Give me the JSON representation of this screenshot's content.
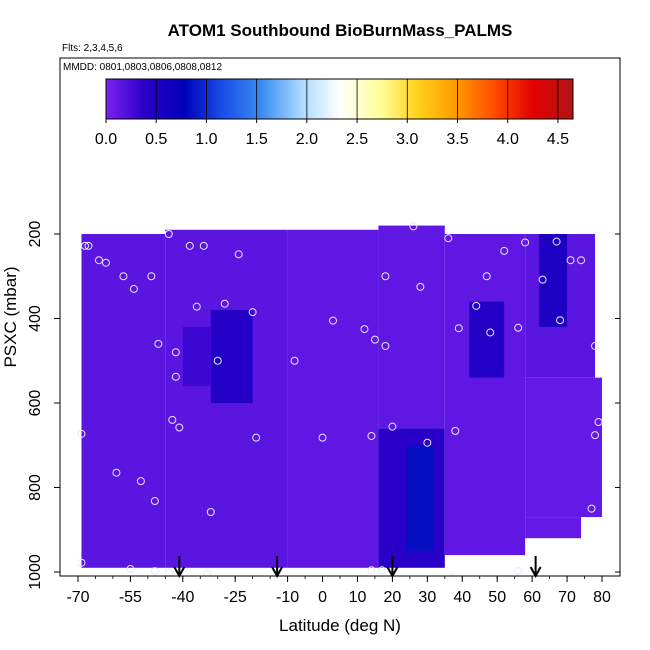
{
  "chart_data": {
    "type": "heatmap",
    "title": "ATOM1 Southbound BioBurnMass_PALMS",
    "flights_note": "Flts: 2,3,4,5,6",
    "dates_note": "MMDD: 0801,0803,0806,0808,0812",
    "xlabel": "Latitude (deg N)",
    "ylabel": "PSXC (mbar)",
    "xlim": [
      -70,
      80
    ],
    "ylim": [
      1000,
      100
    ],
    "x_ticks": [
      -70,
      -55,
      -40,
      -25,
      -10,
      0,
      10,
      20,
      30,
      40,
      50,
      60,
      70,
      80
    ],
    "x_tick_labels": [
      "-70",
      "-55",
      "-40",
      "-25",
      "-10",
      "0",
      "10",
      "20",
      "30",
      "40",
      "50",
      "60",
      "70",
      "80"
    ],
    "y_ticks": [
      200,
      400,
      600,
      800,
      1000
    ],
    "y_tick_labels": [
      "200",
      "400",
      "600",
      "800",
      "1000"
    ],
    "colorbar": {
      "range": [
        0,
        4.65
      ],
      "ticks": [
        0.0,
        0.5,
        1.0,
        1.5,
        2.0,
        2.5,
        3.0,
        3.5,
        4.0,
        4.5
      ],
      "tick_labels": [
        "0.0",
        "0.5",
        "1.0",
        "1.5",
        "2.0",
        "2.5",
        "3.0",
        "3.5",
        "4.0",
        "4.5"
      ],
      "colors": [
        "#7a22f0",
        "#2a00c8",
        "#0000b8",
        "#1a4ee8",
        "#3a8cf2",
        "#a8d8ff",
        "#ffffff",
        "#ffffa0",
        "#ffd21a",
        "#ff9a00",
        "#ff4a00",
        "#e00000",
        "#b01515"
      ]
    },
    "background_value": 0.1,
    "grid": false,
    "field_regions": [
      {
        "lat": [
          -69,
          -45
        ],
        "p": [
          200,
          990
        ],
        "value": 0.15
      },
      {
        "lat": [
          -45,
          -10
        ],
        "p": [
          190,
          990
        ],
        "value": 0.15
      },
      {
        "lat": [
          -32,
          -20
        ],
        "p": [
          380,
          600
        ],
        "value": 0.45
      },
      {
        "lat": [
          -40,
          -32
        ],
        "p": [
          420,
          560
        ],
        "value": 0.3
      },
      {
        "lat": [
          -10,
          16
        ],
        "p": [
          190,
          990
        ],
        "value": 0.12
      },
      {
        "lat": [
          16,
          35
        ],
        "p": [
          180,
          660
        ],
        "value": 0.12
      },
      {
        "lat": [
          16,
          35
        ],
        "p": [
          660,
          990
        ],
        "value": 0.4
      },
      {
        "lat": [
          24,
          32
        ],
        "p": [
          700,
          950
        ],
        "value": 0.85
      },
      {
        "lat": [
          35,
          58
        ],
        "p": [
          200,
          960
        ],
        "value": 0.12
      },
      {
        "lat": [
          42,
          52
        ],
        "p": [
          360,
          540
        ],
        "value": 0.45
      },
      {
        "lat": [
          58,
          78
        ],
        "p": [
          200,
          540
        ],
        "value": 0.15
      },
      {
        "lat": [
          62,
          70
        ],
        "p": [
          200,
          420
        ],
        "value": 0.5
      },
      {
        "lat": [
          58,
          80
        ],
        "p": [
          540,
          870
        ],
        "value": 0.1
      },
      {
        "lat": [
          58,
          74
        ],
        "p": [
          870,
          920
        ],
        "value": 0.1
      }
    ],
    "sample_points": [
      {
        "lat": -68,
        "p": 228
      },
      {
        "lat": -67,
        "p": 228
      },
      {
        "lat": -64,
        "p": 262
      },
      {
        "lat": -62,
        "p": 268
      },
      {
        "lat": -57,
        "p": 300
      },
      {
        "lat": -54,
        "p": 330
      },
      {
        "lat": -49,
        "p": 300
      },
      {
        "lat": -44,
        "p": 200
      },
      {
        "lat": -38,
        "p": 228
      },
      {
        "lat": -34,
        "p": 228
      },
      {
        "lat": -24,
        "p": 248
      },
      {
        "lat": -36,
        "p": 372
      },
      {
        "lat": -28,
        "p": 365
      },
      {
        "lat": -20,
        "p": 385
      },
      {
        "lat": -47,
        "p": 460
      },
      {
        "lat": -42,
        "p": 480
      },
      {
        "lat": -42,
        "p": 538
      },
      {
        "lat": -30,
        "p": 500
      },
      {
        "lat": -8,
        "p": 500
      },
      {
        "lat": 3,
        "p": 405
      },
      {
        "lat": 12,
        "p": 425
      },
      {
        "lat": 15,
        "p": 450
      },
      {
        "lat": 18,
        "p": 465
      },
      {
        "lat": 18,
        "p": 300
      },
      {
        "lat": 28,
        "p": 325
      },
      {
        "lat": 26,
        "p": 182
      },
      {
        "lat": 36,
        "p": 210
      },
      {
        "lat": 44,
        "p": 370
      },
      {
        "lat": 47,
        "p": 300
      },
      {
        "lat": 52,
        "p": 240
      },
      {
        "lat": 58,
        "p": 220
      },
      {
        "lat": 67,
        "p": 218
      },
      {
        "lat": 71,
        "p": 262
      },
      {
        "lat": 74,
        "p": 262
      },
      {
        "lat": 63,
        "p": 308
      },
      {
        "lat": 56,
        "p": 422
      },
      {
        "lat": 48,
        "p": 433
      },
      {
        "lat": 39,
        "p": 423
      },
      {
        "lat": 68,
        "p": 404
      },
      {
        "lat": 78,
        "p": 465
      },
      {
        "lat": 79,
        "p": 645
      },
      {
        "lat": 78,
        "p": 676
      },
      {
        "lat": 77,
        "p": 850
      },
      {
        "lat": -69,
        "p": 673
      },
      {
        "lat": -43,
        "p": 640
      },
      {
        "lat": -41,
        "p": 658
      },
      {
        "lat": -19,
        "p": 682
      },
      {
        "lat": 0,
        "p": 682
      },
      {
        "lat": 14,
        "p": 678
      },
      {
        "lat": 20,
        "p": 656
      },
      {
        "lat": 30,
        "p": 694
      },
      {
        "lat": 38,
        "p": 666
      },
      {
        "lat": -59,
        "p": 765
      },
      {
        "lat": -52,
        "p": 785
      },
      {
        "lat": -48,
        "p": 832
      },
      {
        "lat": -32,
        "p": 858
      },
      {
        "lat": -69,
        "p": 978
      },
      {
        "lat": -55,
        "p": 993
      },
      {
        "lat": -48,
        "p": 998
      },
      {
        "lat": -44,
        "p": 1002
      },
      {
        "lat": -33,
        "p": 1004
      },
      {
        "lat": 14,
        "p": 996
      },
      {
        "lat": 17,
        "p": 996
      },
      {
        "lat": 37,
        "p": 1013
      },
      {
        "lat": 56,
        "p": 998
      }
    ],
    "arrows_lat": [
      -41,
      -13,
      20,
      61
    ]
  }
}
